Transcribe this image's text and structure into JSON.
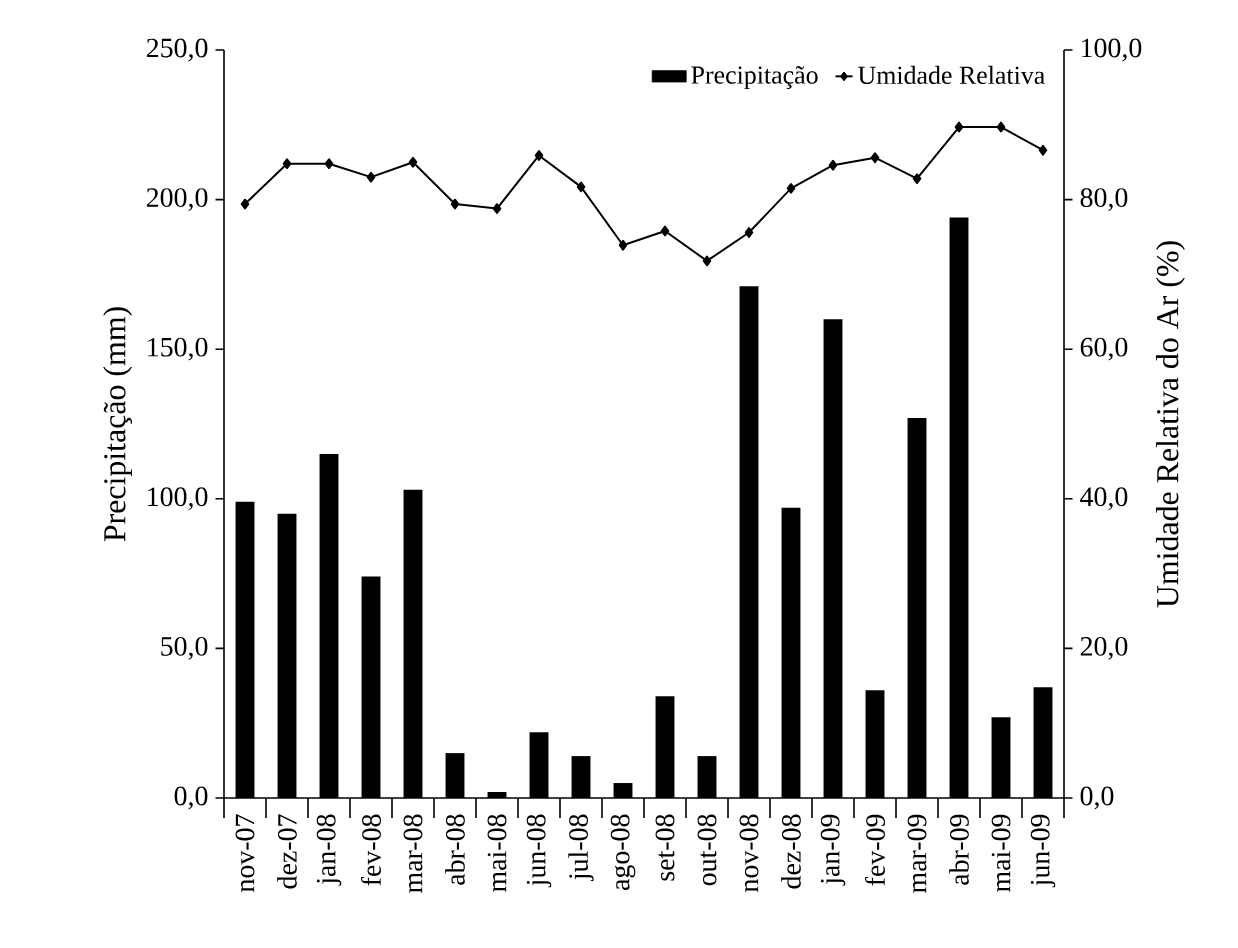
{
  "chart_data": {
    "type": "bar",
    "categories": [
      "nov-07",
      "dez-07",
      "jan-08",
      "fev-08",
      "mar-08",
      "abr-08",
      "mai-08",
      "jun-08",
      "jul-08",
      "ago-08",
      "set-08",
      "out-08",
      "nov-08",
      "dez-08",
      "jan-09",
      "fev-09",
      "mar-09",
      "abr-09",
      "mai-09",
      "jun-09"
    ],
    "series": [
      {
        "name": "Precipitação",
        "color": "#000000",
        "values": [
          99,
          95,
          115,
          74,
          103,
          15,
          2,
          22,
          14,
          5,
          34,
          14,
          171,
          97,
          160,
          36,
          127,
          194,
          27,
          37
        ]
      },
      {
        "name": "Umidade Relativa",
        "type": "line",
        "axis": "y2",
        "color": "#000000",
        "marker": "diamond",
        "values": [
          79.4,
          84.8,
          84.8,
          83,
          85,
          79.4,
          78.8,
          85.9,
          81.7,
          73.9,
          75.8,
          71.8,
          75.6,
          81.5,
          84.6,
          85.6,
          82.8,
          89.7,
          89.7,
          86.6
        ]
      }
    ],
    "ylabel": "Precipitação (mm)",
    "y2label": "Umidade Relativa do Ar (%)",
    "ylim": [
      0,
      250
    ],
    "yticks": [
      {
        "value": 0,
        "label": "0,0"
      },
      {
        "value": 50,
        "label": "50,0"
      },
      {
        "value": 100,
        "label": "100,0"
      },
      {
        "value": 150,
        "label": "150,0"
      },
      {
        "value": 200,
        "label": "200,0"
      },
      {
        "value": 250,
        "label": "250,0"
      }
    ],
    "y2lim": [
      0,
      100
    ],
    "y2ticks": [
      {
        "value": 0,
        "label": "0,0"
      },
      {
        "value": 20,
        "label": "20,0"
      },
      {
        "value": 40,
        "label": "40,0"
      },
      {
        "value": 60,
        "label": "60,0"
      },
      {
        "value": 80,
        "label": "80,0"
      },
      {
        "value": 100,
        "label": "100,0"
      }
    ],
    "legend": "top right"
  }
}
